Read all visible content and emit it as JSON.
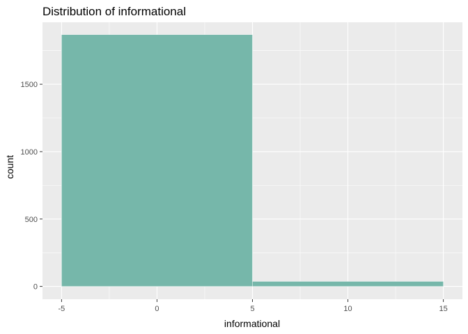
{
  "chart_data": {
    "type": "bar",
    "title": "Distribution of informational",
    "xlabel": "informational",
    "ylabel": "count",
    "bins": [
      {
        "x0": -5,
        "x1": 5,
        "count": 1868
      },
      {
        "x0": 5,
        "x1": 15,
        "count": 37
      }
    ],
    "xlim": [
      -6,
      16
    ],
    "ylim": [
      -95,
      1960
    ],
    "x_ticks": [
      -5,
      0,
      5,
      10,
      15
    ],
    "x_tick_labels": [
      "-5",
      "0",
      "5",
      "10",
      "15"
    ],
    "y_ticks": [
      0,
      500,
      1000,
      1500
    ],
    "y_tick_labels": [
      "0",
      "500",
      "1000",
      "1500"
    ],
    "grid": true,
    "colors": {
      "bar": "#76b7aa",
      "panel": "#ebebeb",
      "grid": "#ffffff"
    }
  }
}
